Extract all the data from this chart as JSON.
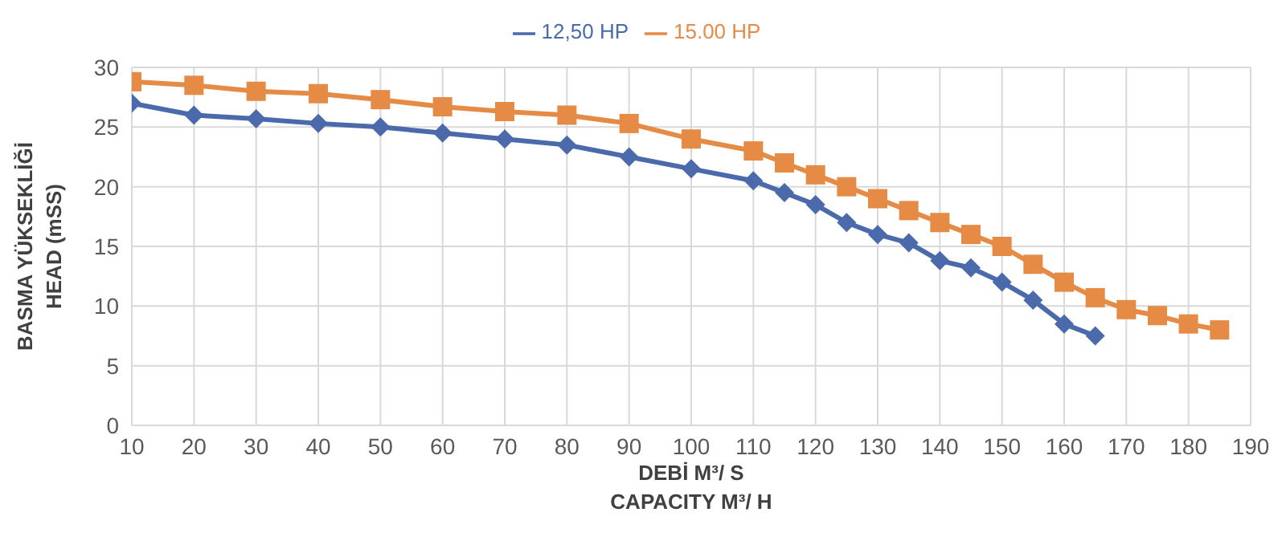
{
  "chart_data": {
    "type": "line",
    "xlabel": "DEBİ M³/ S\nCAPACITY M³/ H",
    "ylabel": "BASMA YÜKSEKLİĞİ\nHEAD (mSS)",
    "x": [
      10,
      20,
      30,
      40,
      50,
      60,
      70,
      80,
      90,
      100,
      110,
      115,
      120,
      125,
      130,
      135,
      140,
      145,
      150,
      155,
      160,
      165,
      170,
      175,
      180,
      185
    ],
    "series": [
      {
        "name": "12,50 HP",
        "color": "#4a6aab",
        "marker": "diamond",
        "values": [
          27,
          26,
          25.7,
          25.3,
          25,
          24.5,
          24,
          23.5,
          22.5,
          21.5,
          20.5,
          19.5,
          18.5,
          17,
          16,
          15.3,
          13.8,
          13.2,
          12,
          10.5,
          8.5,
          7.5,
          null,
          null,
          null,
          null
        ]
      },
      {
        "name": "15.00 HP",
        "color": "#e58b45",
        "marker": "square",
        "values": [
          28.8,
          28.5,
          28,
          27.8,
          27.3,
          26.7,
          26.3,
          26,
          25.3,
          24,
          23,
          22,
          21,
          20,
          19,
          18,
          17,
          16,
          15,
          13.5,
          12,
          10.7,
          9.7,
          9.2,
          8.5,
          8
        ]
      }
    ],
    "xlim": [
      10,
      190
    ],
    "xticks": [
      10,
      20,
      30,
      40,
      50,
      60,
      70,
      80,
      90,
      100,
      110,
      120,
      130,
      140,
      150,
      160,
      170,
      180,
      190
    ],
    "ylim": [
      0,
      30
    ],
    "yticks": [
      0,
      5,
      10,
      15,
      20,
      25,
      30
    ],
    "grid": true,
    "legend": "top",
    "line_style": "solid"
  }
}
